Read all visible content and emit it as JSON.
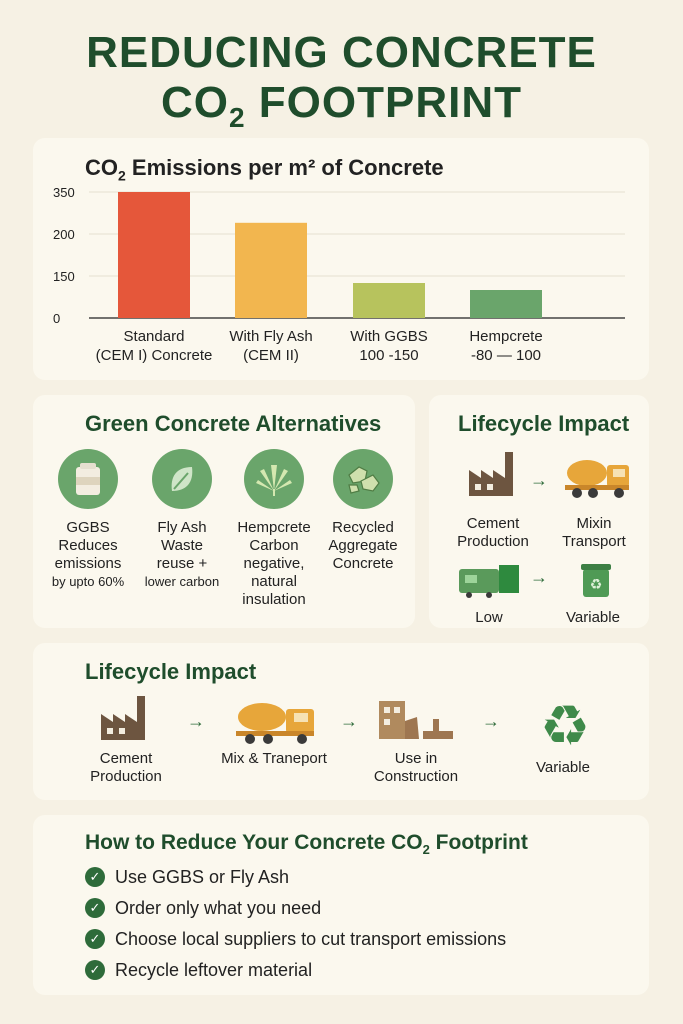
{
  "title_line1": "REDUCING CONCRETE",
  "title_line2_pre": "CO",
  "title_line2_sub": "2",
  "title_line2_post": " FOOTPRINT",
  "chart_data": {
    "type": "bar",
    "title_pre": "CO",
    "title_sub": "2",
    "title_post": " Emissions per m² of Concrete",
    "categories": [
      [
        "Standard",
        "(CEM I) Concrete"
      ],
      [
        "With Fly Ash",
        "(CEM II)"
      ],
      [
        "With GGBS",
        "100 -150"
      ],
      [
        "Hempcrete",
        "-80 — 100"
      ]
    ],
    "values": [
      350,
      240,
      125,
      100
    ],
    "yticks": [
      "350",
      "200",
      "150",
      "0"
    ],
    "colors": [
      "#e5573a",
      "#f2b64f",
      "#b7c35d",
      "#6aa56b"
    ],
    "grid": true
  },
  "alternatives": {
    "title": "Green Concrete Alternatives",
    "items": [
      {
        "name": "GGBS",
        "desc": [
          "Reduces",
          "emissions"
        ],
        "desc_small": "by upto 60%",
        "icon": "bag-icon"
      },
      {
        "name": "Fly Ash",
        "desc": [
          "Waste",
          "reuse +"
        ],
        "desc_small": "lower carbon",
        "icon": "leaf-icon"
      },
      {
        "name": "Hempcrete",
        "desc": [
          "Carbon",
          "negative,",
          "natural",
          "insulation"
        ],
        "desc_small": "",
        "icon": "hemp-leaf-icon"
      },
      {
        "name": "Recycled",
        "desc": [
          "Aggregate",
          "Concrete"
        ],
        "desc_small": "",
        "icon": "rocks-icon"
      }
    ]
  },
  "lifecycle_small": {
    "title": "Lifecycle Impact",
    "cement": [
      "Cement",
      "Production"
    ],
    "mixing": [
      "Mixin",
      "Transport"
    ],
    "low": "Low",
    "variable": "Variable"
  },
  "lifecycle_wide": {
    "title": "Lifecycle Impact",
    "steps": [
      [
        "Cement",
        "Production"
      ],
      [
        "Mix & Traneport"
      ],
      [
        "Use in",
        "Construction"
      ],
      [
        "Variable"
      ]
    ]
  },
  "tips": {
    "title_pre": "How to Reduce Your Concrete CO",
    "title_sub": "2",
    "title_post": " Footprint",
    "items": [
      "Use GGBS or Fly Ash",
      "Order only what you need",
      "Choose local suppliers to cut transport emissions",
      "Recycle leftover material"
    ]
  }
}
